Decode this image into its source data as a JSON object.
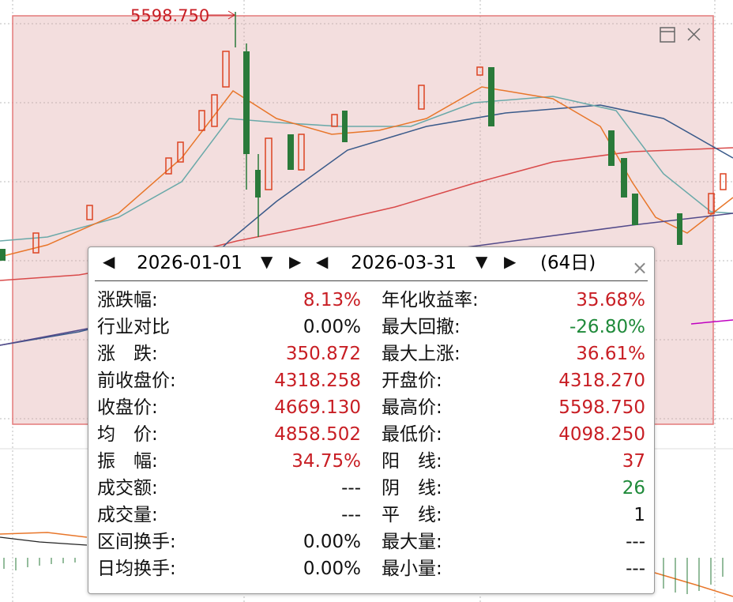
{
  "peak_label": "5598.750",
  "range": {
    "start": "2026-01-01",
    "end": "2026-03-31",
    "days": "(64日)"
  },
  "stats": {
    "left": [
      {
        "label": "涨跌幅:",
        "value": "8.13%",
        "color": "#c81e24"
      },
      {
        "label": "行业对比",
        "value": "0.00%",
        "color": "#111111"
      },
      {
        "label": "涨　跌:",
        "value": "350.872",
        "color": "#c81e24"
      },
      {
        "label": "前收盘价:",
        "value": "4318.258",
        "color": "#c81e24"
      },
      {
        "label": "收盘价:",
        "value": "4669.130",
        "color": "#c81e24"
      },
      {
        "label": "均　价:",
        "value": "4858.502",
        "color": "#c81e24"
      },
      {
        "label": "振　幅:",
        "value": "34.75%",
        "color": "#c81e24"
      },
      {
        "label": "成交额:",
        "value": "---",
        "color": "#111111"
      },
      {
        "label": "成交量:",
        "value": "---",
        "color": "#111111"
      },
      {
        "label": "区间换手:",
        "value": "0.00%",
        "color": "#111111"
      },
      {
        "label": "日均换手:",
        "value": "0.00%",
        "color": "#111111"
      }
    ],
    "right": [
      {
        "label": "年化收益率:",
        "value": "35.68%",
        "color": "#c81e24"
      },
      {
        "label": "最大回撤:",
        "value": "-26.80%",
        "color": "#1f8a3a"
      },
      {
        "label": "最大上涨:",
        "value": "36.61%",
        "color": "#c81e24"
      },
      {
        "label": "开盘价:",
        "value": "4318.270",
        "color": "#c81e24"
      },
      {
        "label": "最高价:",
        "value": "5598.750",
        "color": "#c81e24"
      },
      {
        "label": "最低价:",
        "value": "4098.250",
        "color": "#c81e24"
      },
      {
        "label": "阳　线:",
        "value": "37",
        "color": "#c81e24"
      },
      {
        "label": "阴　线:",
        "value": "26",
        "color": "#1f8a3a"
      },
      {
        "label": "平　线:",
        "value": "1",
        "color": "#111111"
      },
      {
        "label": "最大量:",
        "value": "---",
        "color": "#111111"
      },
      {
        "label": "最小量:",
        "value": "---",
        "color": "#111111"
      }
    ]
  }
}
